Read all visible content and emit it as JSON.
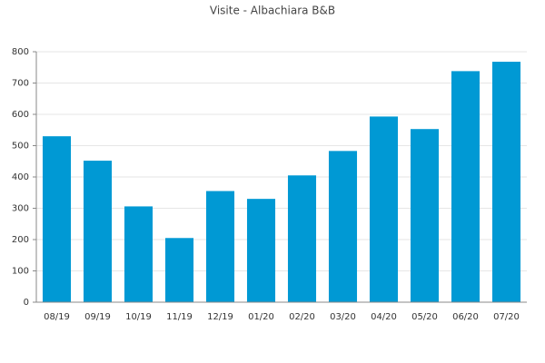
{
  "chart_data": {
    "type": "bar",
    "title": "Visite - Albachiara B&B",
    "categories": [
      "08/19",
      "09/19",
      "10/19",
      "11/19",
      "12/19",
      "01/20",
      "02/20",
      "03/20",
      "04/20",
      "05/20",
      "06/20",
      "07/20"
    ],
    "values": [
      530,
      452,
      306,
      205,
      355,
      330,
      405,
      483,
      593,
      553,
      738,
      768
    ],
    "color": "#0099d4",
    "ylim": [
      0,
      800
    ],
    "yticks": [
      0,
      100,
      200,
      300,
      400,
      500,
      600,
      700,
      800
    ],
    "grid": true
  }
}
